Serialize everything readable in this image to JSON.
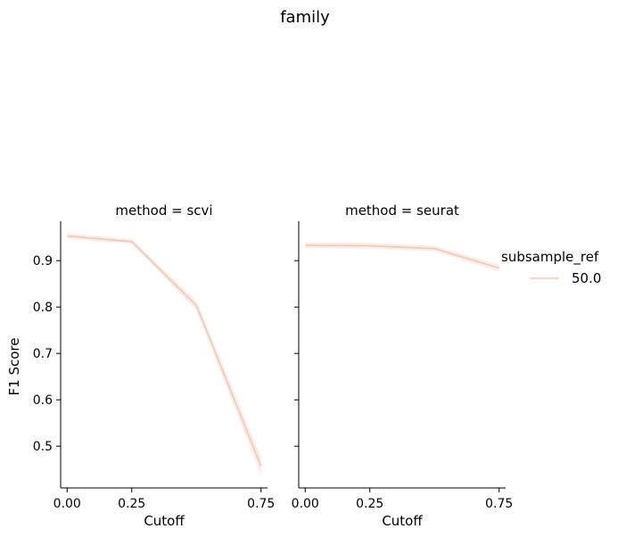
{
  "chart_data": {
    "type": "line",
    "suptitle": "family",
    "ylabel": "F1 Score",
    "ylim": [
      0.41,
      0.985
    ],
    "xlim": [
      -0.025,
      0.775
    ],
    "x_ticks": [
      {
        "value": 0.0,
        "label": "0.00"
      },
      {
        "value": 0.25,
        "label": "0.25"
      },
      {
        "value": 0.75,
        "label": "0.75"
      }
    ],
    "y_ticks": [
      {
        "value": 0.5,
        "label": "0.5"
      },
      {
        "value": 0.6,
        "label": "0.6"
      },
      {
        "value": 0.7,
        "label": "0.7"
      },
      {
        "value": 0.8,
        "label": "0.8"
      },
      {
        "value": 0.9,
        "label": "0.9"
      }
    ],
    "grid": false,
    "legend": {
      "title": "subsample_ref",
      "placement": "right",
      "entries": [
        {
          "label": "50.0",
          "color": "#f0c9b8"
        }
      ]
    },
    "panels": [
      {
        "title": "method = scvi",
        "xlabel": "Cutoff",
        "series": [
          {
            "name": "50.0",
            "x": [
              0.0,
              0.25,
              0.5,
              0.75
            ],
            "y": [
              0.953,
              0.941,
              0.803,
              0.457
            ],
            "ci_low": [
              0.947,
              0.936,
              0.793,
              0.437
            ],
            "ci_high": [
              0.959,
              0.946,
              0.813,
              0.477
            ]
          }
        ]
      },
      {
        "title": "method = seurat",
        "xlabel": "Cutoff",
        "series": [
          {
            "name": "50.0",
            "x": [
              0.0,
              0.25,
              0.5,
              0.75
            ],
            "y": [
              0.933,
              0.932,
              0.926,
              0.884
            ],
            "ci_low": [
              0.927,
              0.926,
              0.92,
              0.877
            ],
            "ci_high": [
              0.939,
              0.938,
              0.932,
              0.891
            ]
          }
        ]
      }
    ],
    "colors": {
      "line": "#f0c9b8",
      "band": "#f6ddd2"
    }
  }
}
